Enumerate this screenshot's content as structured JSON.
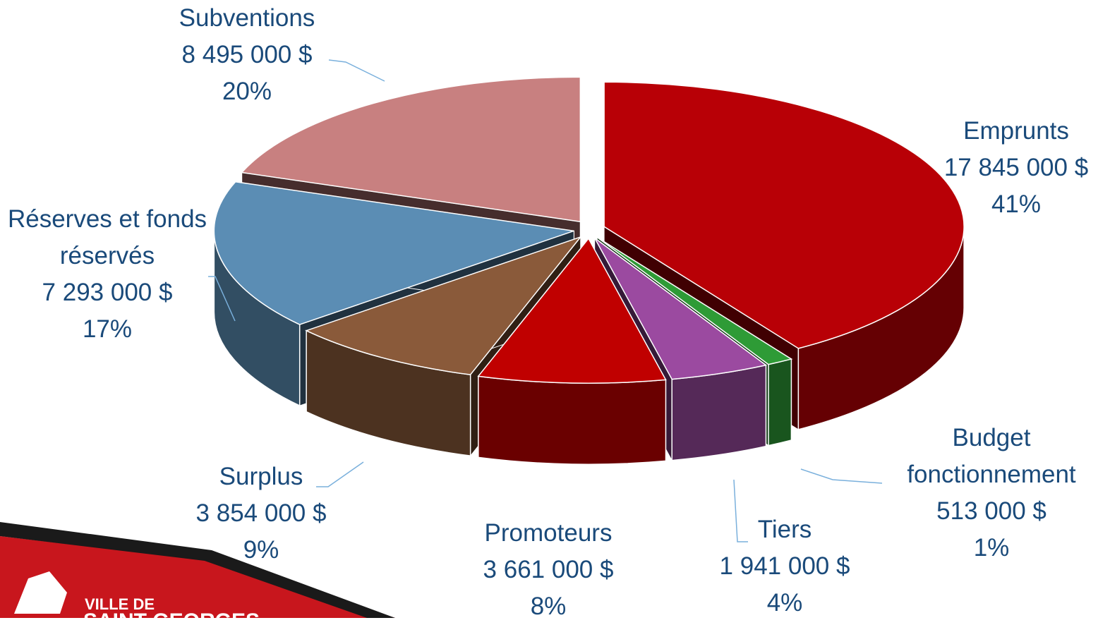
{
  "chart_data": {
    "type": "pie3d",
    "categories": [
      "Emprunts",
      "Budget fonctionnement",
      "Tiers",
      "Promoteurs",
      "Surplus",
      "Réserves et fonds réservés",
      "Subventions"
    ],
    "values": [
      17845000,
      513000,
      1941000,
      3661000,
      3854000,
      7293000,
      8495000
    ],
    "value_labels": [
      "17 845 000 $",
      "513 000 $",
      "1 941 000 $",
      "3 661 000 $",
      "3 854 000 $",
      "7 293 000 $",
      "8 495 000 $"
    ],
    "percent_labels": [
      "41%",
      "1%",
      "4%",
      "8%",
      "9%",
      "17%",
      "20%"
    ],
    "colors": [
      "#b80006",
      "#2e9b36",
      "#9b4aa0",
      "#c00000",
      "#8a5a3a",
      "#5b8db4",
      "#c88080"
    ]
  },
  "logo": {
    "line1": "VILLE DE",
    "line2": "SAINT-GEORGES"
  }
}
